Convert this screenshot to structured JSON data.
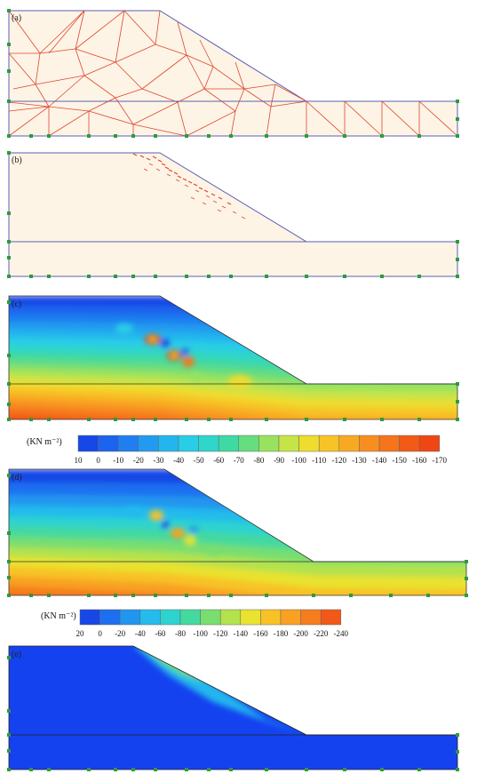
{
  "panels": {
    "a": {
      "label": "(a)"
    },
    "b": {
      "label": "(b)"
    },
    "c": {
      "label": "(c)"
    },
    "d": {
      "label": "(d)"
    },
    "e": {
      "label": "(e)"
    }
  },
  "legend_c": {
    "unit": "(KN m⁻²)",
    "ticks": [
      "10",
      "0",
      "-10",
      "-20",
      "-30",
      "-40",
      "-50",
      "-60",
      "-70",
      "-80",
      "-90",
      "-100",
      "-110",
      "-120",
      "-130",
      "-140",
      "-150",
      "-160",
      "-170"
    ]
  },
  "legend_d": {
    "unit": "(KN m⁻²)",
    "ticks": [
      "20",
      "0",
      "-20",
      "-40",
      "-60",
      "-80",
      "-100",
      "-120",
      "-140",
      "-160",
      "-180",
      "-200",
      "-220",
      "-240"
    ]
  },
  "colors": {
    "mesh": "#e0452b",
    "outline": "#5a5fb3",
    "soil": "#fdf4e6",
    "node": "#2f9a3e"
  },
  "scale_c": [
    "#1747e6",
    "#1c63ee",
    "#1f7ff0",
    "#229bef",
    "#23b6ee",
    "#29cde6",
    "#2fd6c9",
    "#3fd9a3",
    "#66dd7f",
    "#99e25f",
    "#c7e447",
    "#eedc2e",
    "#f7c327",
    "#f8a924",
    "#f88e20",
    "#f6741c",
    "#f25a17",
    "#ee4715"
  ],
  "scale_d": [
    "#1747e6",
    "#1e6ff0",
    "#2295ef",
    "#24bbed",
    "#2dd3cf",
    "#44d99f",
    "#78de70",
    "#b3e24d",
    "#e9e22f",
    "#f8c226",
    "#f8a122",
    "#f67d1d",
    "#f25817"
  ]
}
